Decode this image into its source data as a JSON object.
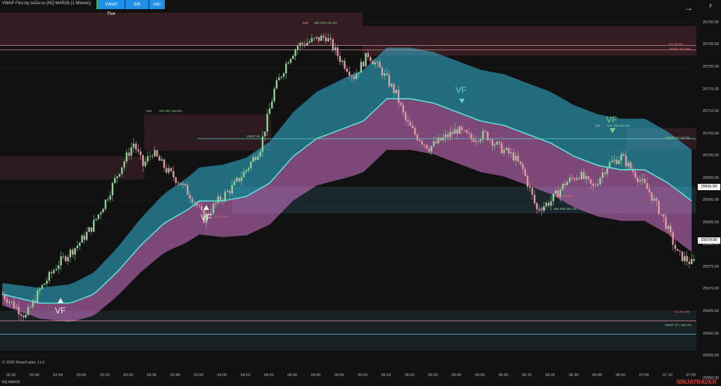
{
  "window": {
    "title": "VWAP Flux by zeZa.co (NQ MAR26 (1 Minute))"
  },
  "toolbar": {
    "buttons": [
      "VWAP Flux",
      "S/R",
      "Info"
    ]
  },
  "icons": {
    "exit": "arrow-right-icon",
    "panel": "f-icon"
  },
  "colors": {
    "background": "#111111",
    "up": "#8fd49a",
    "down": "#e59aa6",
    "vwap_line": "#5fe0d8",
    "upper_band": "#33b8d8",
    "lower_band": "#e77fe0",
    "resistance": "#e08ea0",
    "support": "#5fd0d0"
  },
  "price_axis": {
    "labels": [
      "25730.00",
      "25725.00",
      "25720.00",
      "25715.00",
      "25710.00",
      "25705.00",
      "25700.00",
      "25695.00",
      "25690.00",
      "25685.00",
      "25680.00",
      "25675.00",
      "25670.00",
      "25665.00",
      "25660.00",
      "25655.00",
      "25650.00"
    ],
    "tag_top": "25691.50",
    "tag_bottom": "25679.00"
  },
  "time_axis": {
    "labels": [
      "02:30",
      "02:40",
      "02:50",
      "03:00",
      "03:10",
      "03:20",
      "03:30",
      "03:40",
      "03:50",
      "04:00",
      "04:10",
      "04:20",
      "04:30",
      "04:40",
      "04:50",
      "05:00",
      "05:10",
      "05:20",
      "05:30",
      "05:40",
      "05:50",
      "06:00",
      "06:10",
      "06:20",
      "06:30",
      "06:40",
      "06:50",
      "07:00",
      "07:10",
      "07:20"
    ]
  },
  "signals": {
    "vf": [
      "VF",
      "VF",
      "VF",
      "VF",
      "VF"
    ]
  },
  "annotations": {
    "a644": "644",
    "a644_stats": "347  297  116.8%",
    "a629": "629",
    "a629_stats": "386  375  141.9%",
    "a475": "475",
    "a475_stats": "166  308  161.1%",
    "a366": "366",
    "a366_stats": "184  180  102.2%",
    "lvl_r1": "R1 25.3%",
    "lvl_r2": "VWAP -67.29%",
    "lvl_r3": "VWAP 37 / 10.0%",
    "lvl_s1": "S1 29.34%",
    "lvl_s2": "VWAP 37 / 154.0%",
    "mid1": "VWAP 55",
    "mid2": "S2 11.8%",
    "mid3": "S1 -106.3%"
  },
  "footer": {
    "copyright": "© 2026 NinjaTrader, LLC",
    "instrument": "NQ MAR26",
    "brand": "NINJATRADER"
  },
  "chart_data": {
    "type": "candlestick",
    "instrument": "NQ MAR26",
    "interval": "1 Minute",
    "x_range": [
      "02:25",
      "07:22"
    ],
    "y_range": [
      25652,
      25733
    ],
    "close_series": {
      "x": [
        "02:26",
        "02:30",
        "02:36",
        "02:42",
        "02:50",
        "02:58",
        "03:04",
        "03:10",
        "03:16",
        "03:22",
        "03:26",
        "03:30",
        "03:36",
        "03:42",
        "03:48",
        "03:52",
        "03:58",
        "04:04",
        "04:10",
        "04:16",
        "04:22",
        "04:28",
        "04:32",
        "04:38",
        "04:44",
        "04:50",
        "04:56",
        "05:02",
        "05:08",
        "05:14",
        "05:18",
        "05:22",
        "05:28",
        "05:34",
        "05:40",
        "05:46",
        "05:52",
        "05:58",
        "06:04",
        "06:08",
        "06:14",
        "06:20",
        "06:26",
        "06:32",
        "06:38",
        "06:44",
        "06:50",
        "06:56",
        "07:02",
        "07:08",
        "07:14",
        "07:20"
      ],
      "close": [
        25669,
        25667,
        25664,
        25670,
        25676,
        25680,
        25684,
        25690,
        25697,
        25703,
        25698,
        25701,
        25697,
        25694,
        25690,
        25686,
        25690,
        25693,
        25697,
        25702,
        25715,
        25722,
        25725,
        25726,
        25727,
        25722,
        25718,
        25723,
        25719,
        25714,
        25708,
        25705,
        25702,
        25704,
        25706,
        25704,
        25705,
        25702,
        25700,
        25697,
        25688,
        25690,
        25694,
        25696,
        25693,
        25698,
        25700,
        25696,
        25692,
        25686,
        25678,
        25676
      ]
    },
    "series": [
      {
        "name": "VWAP",
        "x": [
          "02:26",
          "02:42",
          "02:55",
          "03:05",
          "03:15",
          "03:25",
          "03:35",
          "03:45",
          "03:50",
          "04:00",
          "04:10",
          "04:20",
          "04:30",
          "04:40",
          "04:50",
          "05:00",
          "05:10",
          "05:20",
          "05:30",
          "05:40",
          "05:50",
          "06:00",
          "06:10",
          "06:20",
          "06:30",
          "06:40",
          "06:50",
          "07:00",
          "07:10",
          "07:20"
        ],
        "values": [
          25669,
          25667,
          25667,
          25669,
          25674,
          25680,
          25685,
          25688,
          25690,
          25690,
          25691,
          25694,
          25700,
          25704,
          25706,
          25708,
          25713,
          25713,
          25712,
          25710,
          25708,
          25707,
          25705,
          25703,
          25700,
          25698,
          25697,
          25697,
          25694,
          25690
        ]
      }
    ],
    "levels": [
      {
        "label": "VWAP -67.29%",
        "price": 25724
      },
      {
        "label": "S1 29.34%",
        "price": 25663
      },
      {
        "label": "VWAP 37 / 154.0%",
        "price": 25660
      },
      {
        "label": "VWAP 37 / 10.0%",
        "price": 25704
      },
      {
        "label": "R1 25.3%",
        "price": 25725
      }
    ]
  }
}
